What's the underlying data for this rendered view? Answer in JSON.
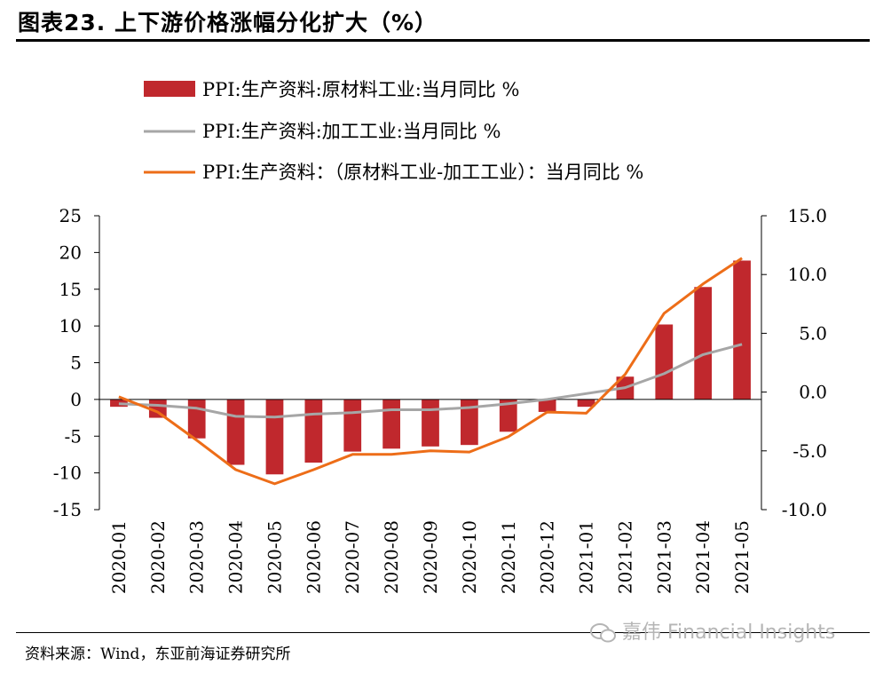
{
  "header": {
    "title": "图表23. 上下游价格涨幅分化扩大（%）"
  },
  "footer": {
    "source": "资料来源：Wind，东亚前海证券研究所",
    "watermark": "嘉伟 Financial Insights"
  },
  "chart_data": {
    "type": "bar",
    "categories": [
      "2020-01",
      "2020-02",
      "2020-03",
      "2020-04",
      "2020-05",
      "2020-06",
      "2020-07",
      "2020-08",
      "2020-09",
      "2020-10",
      "2020-11",
      "2020-12",
      "2021-01",
      "2021-02",
      "2021-03",
      "2021-04",
      "2021-05"
    ],
    "series": [
      {
        "name": "PPI:生产资料:原材料工业:当月同比 %",
        "type": "bar",
        "axis": "left",
        "color": "#C0282D",
        "values": [
          -1.0,
          -2.5,
          -5.3,
          -8.9,
          -10.2,
          -8.6,
          -7.1,
          -6.7,
          -6.4,
          -6.2,
          -4.4,
          -1.7,
          -1.0,
          3.1,
          10.2,
          15.3,
          18.9
        ]
      },
      {
        "name": "PPI:生产资料:加工工业:当月同比 %",
        "type": "line",
        "axis": "left",
        "color": "#A6A6A6",
        "values": [
          -0.6,
          -0.8,
          -1.2,
          -2.3,
          -2.4,
          -2.0,
          -1.8,
          -1.4,
          -1.4,
          -1.1,
          -0.6,
          0.0,
          0.8,
          1.6,
          3.5,
          6.1,
          7.5
        ]
      },
      {
        "name": "PPI:生产资料：（原材料工业-加工工业）：当月同比 %",
        "type": "line",
        "axis": "right",
        "color": "#ED6D18",
        "values": [
          -0.4,
          -1.7,
          -4.1,
          -6.6,
          -7.8,
          -6.6,
          -5.3,
          -5.3,
          -5.0,
          -5.1,
          -3.8,
          -1.7,
          -1.8,
          1.5,
          6.7,
          9.2,
          11.4
        ]
      }
    ],
    "y_left": {
      "ticks": [
        "25",
        "20",
        "15",
        "10",
        "5",
        "0",
        "-5",
        "-10",
        "-15"
      ],
      "min": -15,
      "max": 25
    },
    "y_right": {
      "ticks": [
        "15.0",
        "10.0",
        "5.0",
        "0.0",
        "-5.0",
        "-10.0"
      ],
      "min": -10,
      "max": 15
    },
    "grid": false,
    "legend_position": "top"
  }
}
